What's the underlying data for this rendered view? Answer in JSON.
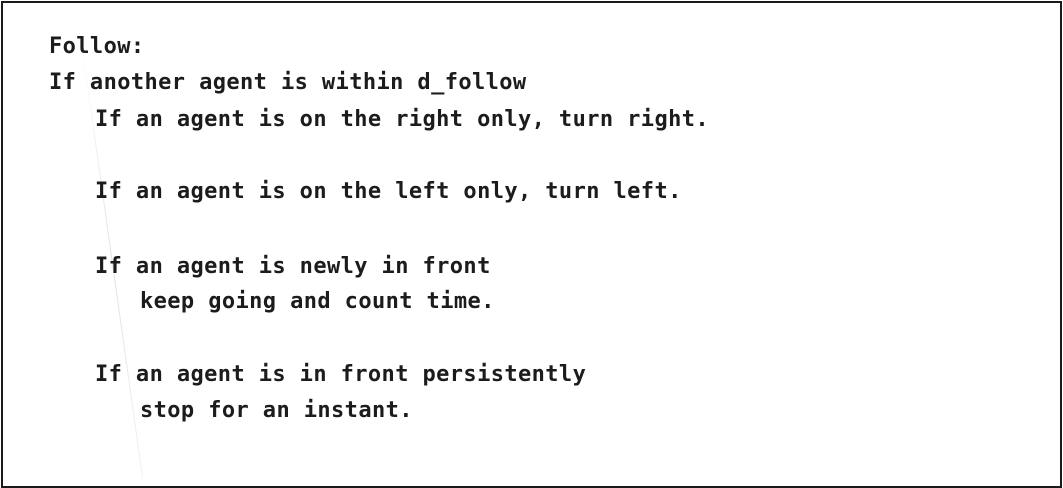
{
  "algorithm": {
    "lines": [
      {
        "text": "Follow:"
      },
      {
        "text": "If another agent is within d_follow"
      },
      {
        "text": "If an agent is on the right only, turn right."
      },
      {
        "text": "If an agent is on the left only, turn left."
      },
      {
        "text": "If an agent is newly in front"
      },
      {
        "text": "keep going and count time."
      },
      {
        "text": "If an agent is in front persistently"
      },
      {
        "text": "stop for an instant."
      }
    ]
  }
}
